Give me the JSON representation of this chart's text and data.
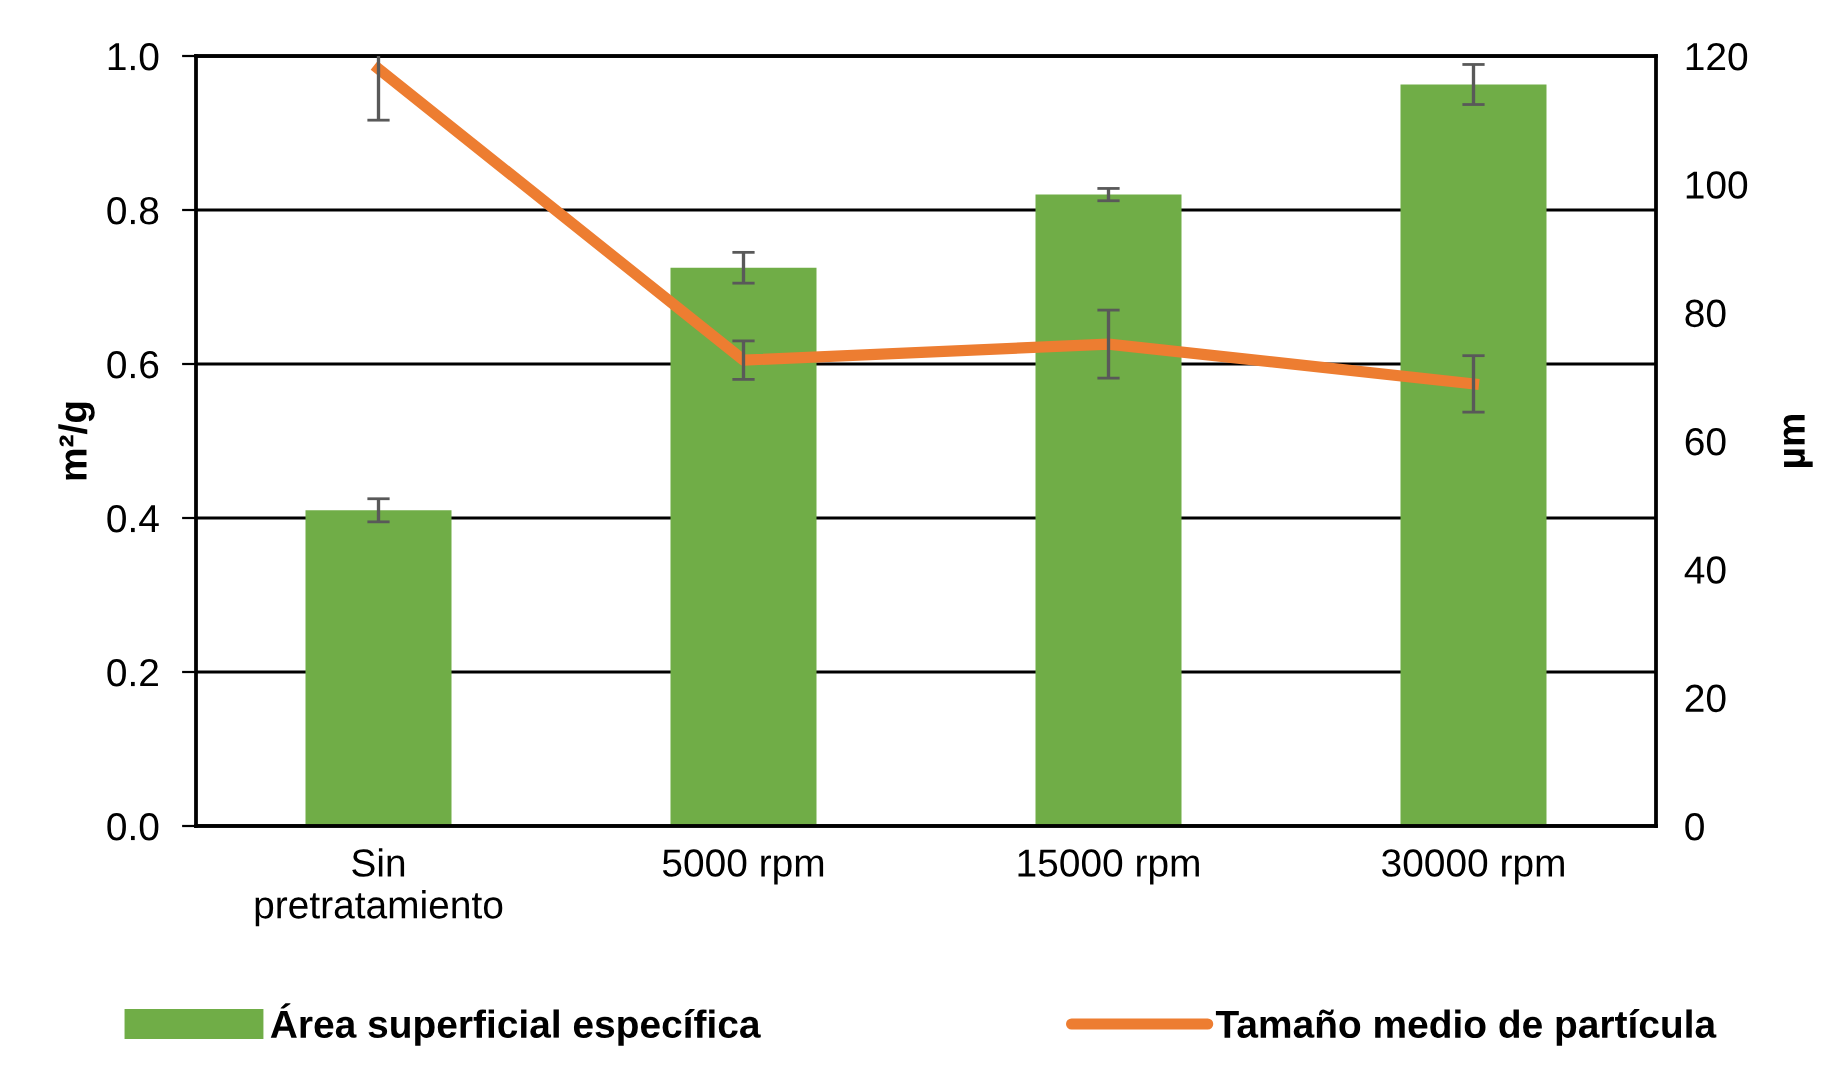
{
  "chart_data": {
    "type": "bar",
    "categories": [
      "Sin\npretratamiento",
      "5000 rpm",
      "15000 rpm",
      "30000 rpm"
    ],
    "series": [
      {
        "name": "Área superficial específica",
        "color": "#70ad47",
        "values": [
          0.41,
          0.725,
          0.82,
          0.963
        ],
        "errors": [
          0.015,
          0.02,
          0.008,
          0.026
        ]
      },
      {
        "name": "Tamaño medio de partícula",
        "type": "line",
        "axis": "y2",
        "color": "#ed7d31",
        "values": [
          118,
          72.6,
          75.1,
          68.9
        ],
        "errors": [
          8,
          3,
          5.3,
          4.4
        ]
      }
    ],
    "ylabel": "m²/g",
    "y2label": "µm",
    "ylim": [
      0,
      1.0
    ],
    "yticks": [
      {
        "value": 0,
        "label": "0.0"
      },
      0.2,
      0.4,
      0.6,
      0.8,
      {
        "value": 1.0,
        "label": "1.0"
      }
    ],
    "y2lim": [
      0,
      120
    ],
    "y2ticks": [
      0,
      20,
      40,
      60,
      80,
      100,
      120
    ],
    "grid": "y",
    "legend": "bottom",
    "marker": "none",
    "line_style": "solid"
  }
}
